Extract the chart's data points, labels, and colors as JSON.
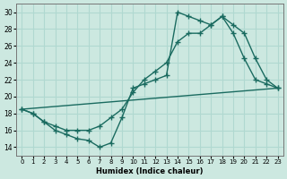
{
  "xlabel": "Humidex (Indice chaleur)",
  "xlim": [
    -0.5,
    23.5
  ],
  "ylim": [
    13,
    31
  ],
  "yticks": [
    14,
    16,
    18,
    20,
    22,
    24,
    26,
    28,
    30
  ],
  "xticks": [
    0,
    1,
    2,
    3,
    4,
    5,
    6,
    7,
    8,
    9,
    10,
    11,
    12,
    13,
    14,
    15,
    16,
    17,
    18,
    19,
    20,
    21,
    22,
    23
  ],
  "bg_color": "#cce8e0",
  "grid_color": "#b0d8d0",
  "line_color": "#1a6b60",
  "line_straight": {
    "x": [
      0,
      23
    ],
    "y": [
      18.5,
      21.0
    ]
  },
  "line_zigzag": {
    "x": [
      0,
      1,
      2,
      3,
      4,
      5,
      6,
      7,
      8,
      9,
      10,
      11,
      12,
      13,
      14,
      15,
      16,
      17,
      18,
      19,
      20,
      21,
      22,
      23
    ],
    "y": [
      18.5,
      18.0,
      17.0,
      16.0,
      15.5,
      15.0,
      14.8,
      14.0,
      14.5,
      17.5,
      21.0,
      21.5,
      22.0,
      22.5,
      30.0,
      29.5,
      29.0,
      28.5,
      29.5,
      27.5,
      24.5,
      22.0,
      21.5,
      21.0
    ]
  },
  "line_upper": {
    "x": [
      0,
      1,
      2,
      3,
      4,
      5,
      6,
      7,
      8,
      9,
      10,
      11,
      12,
      13,
      14,
      15,
      16,
      17,
      18,
      19,
      20,
      21,
      22,
      23
    ],
    "y": [
      18.5,
      18.0,
      17.0,
      16.5,
      16.0,
      16.0,
      16.0,
      16.5,
      17.5,
      18.5,
      20.5,
      22.0,
      23.0,
      24.0,
      26.5,
      27.5,
      27.5,
      28.5,
      29.5,
      28.5,
      27.5,
      24.5,
      22.0,
      21.0
    ]
  }
}
